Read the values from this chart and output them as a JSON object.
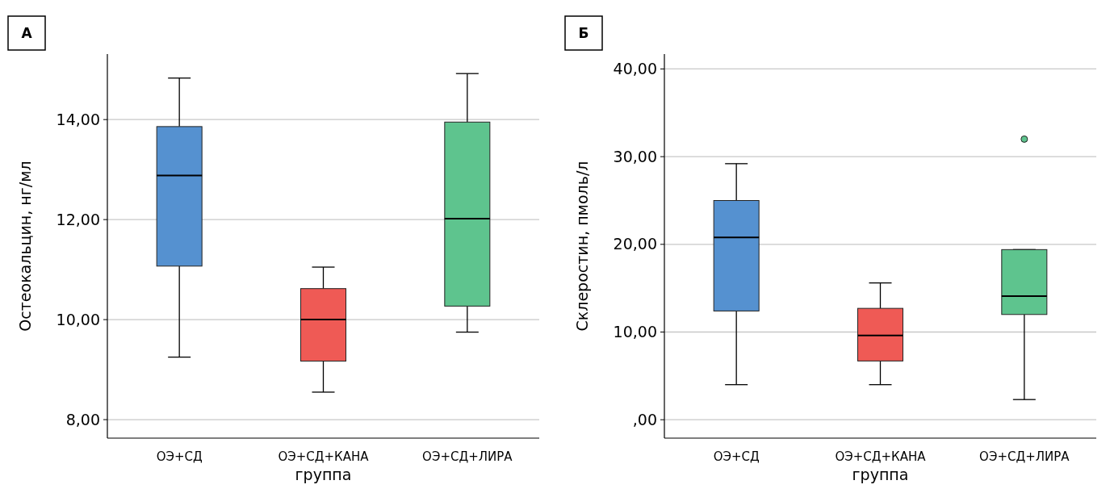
{
  "chart_data": [
    {
      "type": "box",
      "annotations": [
        "А"
      ],
      "xlabel": "группа",
      "ylabel": "Остеокальцин, нг/мл",
      "categories": [
        "ОЭ+СД",
        "ОЭ+СД+КАНА",
        "ОЭ+СД+ЛИРА"
      ],
      "colors": [
        "#5591d0",
        "#ef5a55",
        "#5ec48e"
      ],
      "boxes": [
        {
          "low": 9.25,
          "q1": 11.07,
          "median": 12.88,
          "q3": 13.86,
          "high": 14.83
        },
        {
          "low": 8.55,
          "q1": 9.17,
          "median": 10.0,
          "q3": 10.62,
          "high": 11.05
        },
        {
          "low": 9.75,
          "q1": 10.27,
          "median": 12.02,
          "q3": 13.95,
          "high": 14.92
        }
      ],
      "ylim": [
        7.63,
        15.31
      ],
      "yticks": [
        {
          "value": 8,
          "label": "8,00"
        },
        {
          "value": 10,
          "label": "10,00"
        },
        {
          "value": 12,
          "label": "12,00"
        },
        {
          "value": 14,
          "label": "14,00"
        }
      ],
      "grid": "y"
    },
    {
      "type": "box",
      "annotations": [
        "Б"
      ],
      "xlabel": "группа",
      "ylabel": "Склеростин, пмоль/л",
      "categories": [
        "ОЭ+СД",
        "ОЭ+СД+КАНА",
        "ОЭ+СД+ЛИРА"
      ],
      "colors": [
        "#5591d0",
        "#ef5a55",
        "#5ec48e"
      ],
      "boxes": [
        {
          "low": 4.0,
          "q1": 12.4,
          "median": 20.8,
          "q3": 25.0,
          "high": 29.2
        },
        {
          "low": 4.0,
          "q1": 6.7,
          "median": 9.6,
          "q3": 12.7,
          "high": 15.6
        },
        {
          "low": 2.3,
          "q1": 12.0,
          "median": 14.1,
          "q3": 19.4,
          "high": 19.4,
          "outliers": [
            32.0
          ]
        }
      ],
      "ylim": [
        -2.1,
        41.7
      ],
      "yticks": [
        {
          "value": 0,
          "label": ",00"
        },
        {
          "value": 10,
          "label": "10,00"
        },
        {
          "value": 20,
          "label": "20,00"
        },
        {
          "value": 30,
          "label": "30,00"
        },
        {
          "value": 40,
          "label": "40,00"
        }
      ],
      "grid": "y"
    }
  ]
}
